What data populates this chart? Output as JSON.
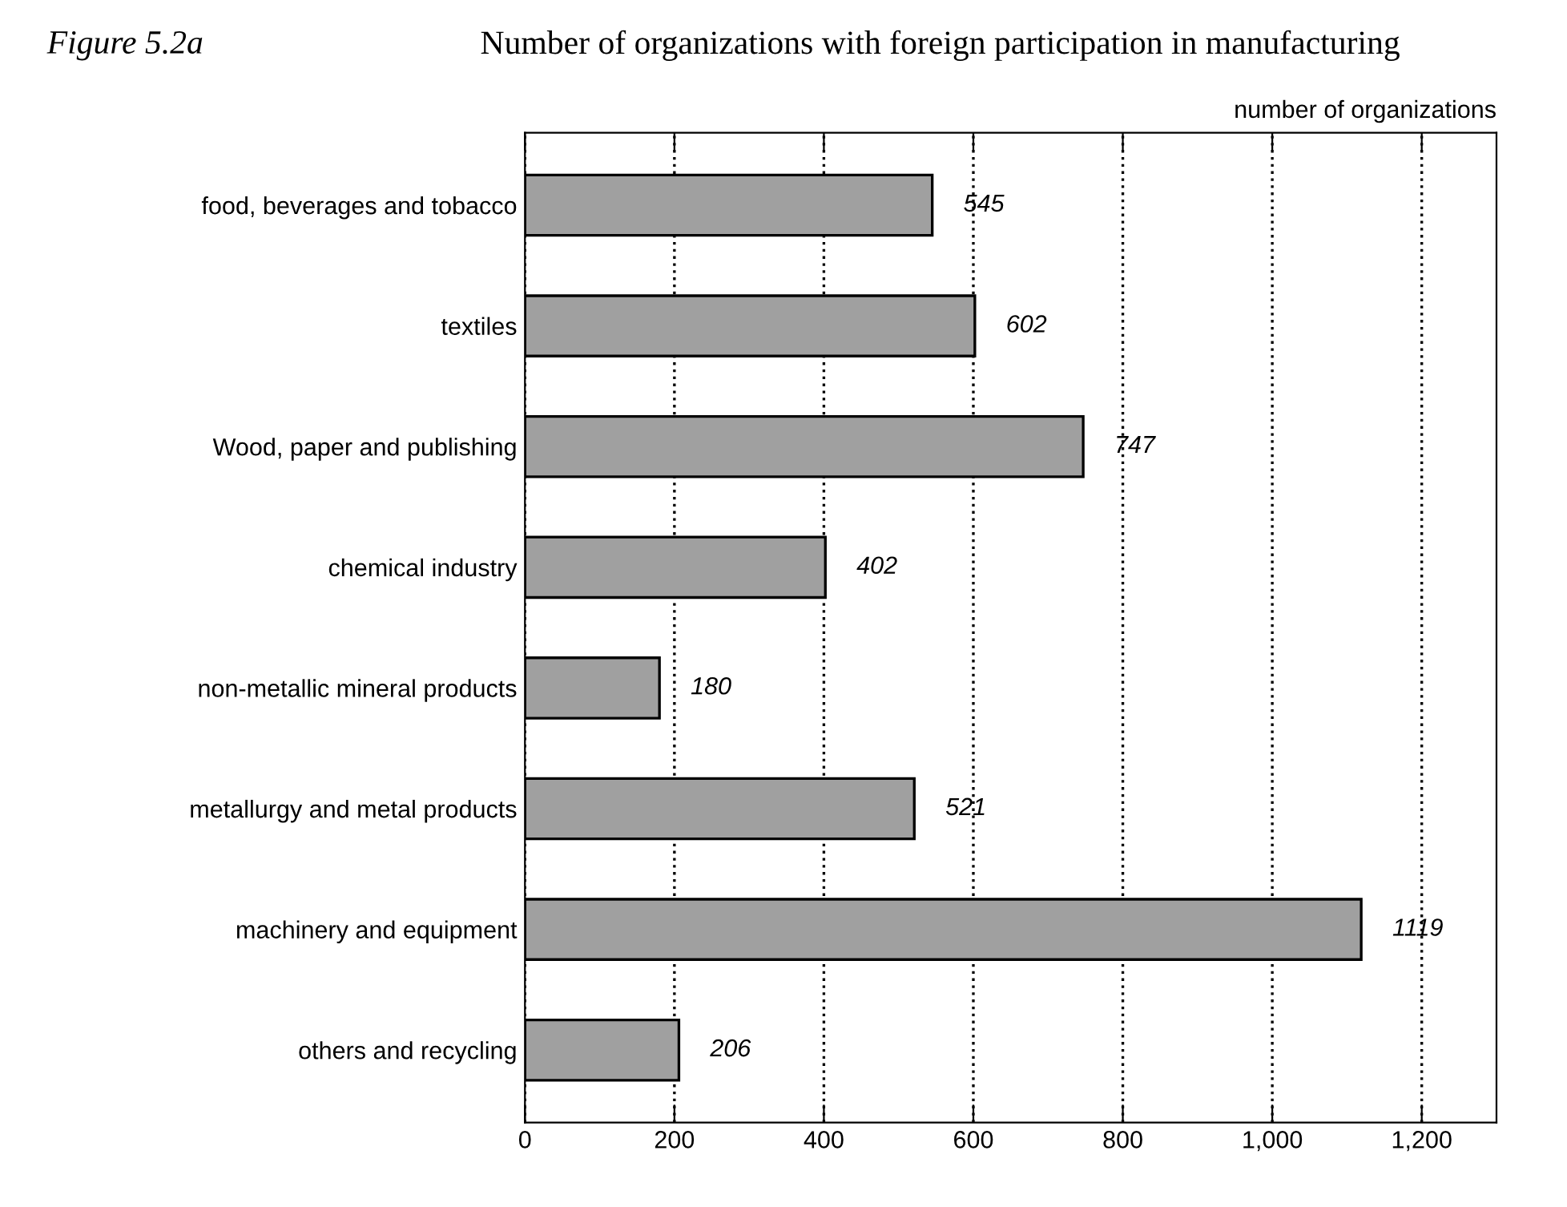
{
  "chart_data": {
    "type": "bar",
    "orientation": "horizontal",
    "title": "Number of organizations with foreign participation in manufacturing",
    "annotations": [
      "Figure 5.2a",
      "number of organizations"
    ],
    "categories": [
      "food, beverages and tobacco",
      "textiles",
      "Wood, paper and publishing",
      "chemical industry",
      "non-metallic mineral products",
      "metallurgy and metal products",
      "machinery and equipment",
      "others and recycling"
    ],
    "values": [
      545,
      602,
      747,
      402,
      180,
      521,
      1119,
      206
    ],
    "color": "#a0a0a0",
    "data_labels": true,
    "xlim": [
      0,
      1300
    ],
    "xticks": [
      0,
      200,
      400,
      600,
      800,
      {
        "value": 1000,
        "label": "1,000"
      },
      {
        "value": 1200,
        "label": "1,200"
      }
    ],
    "grid": "x"
  }
}
